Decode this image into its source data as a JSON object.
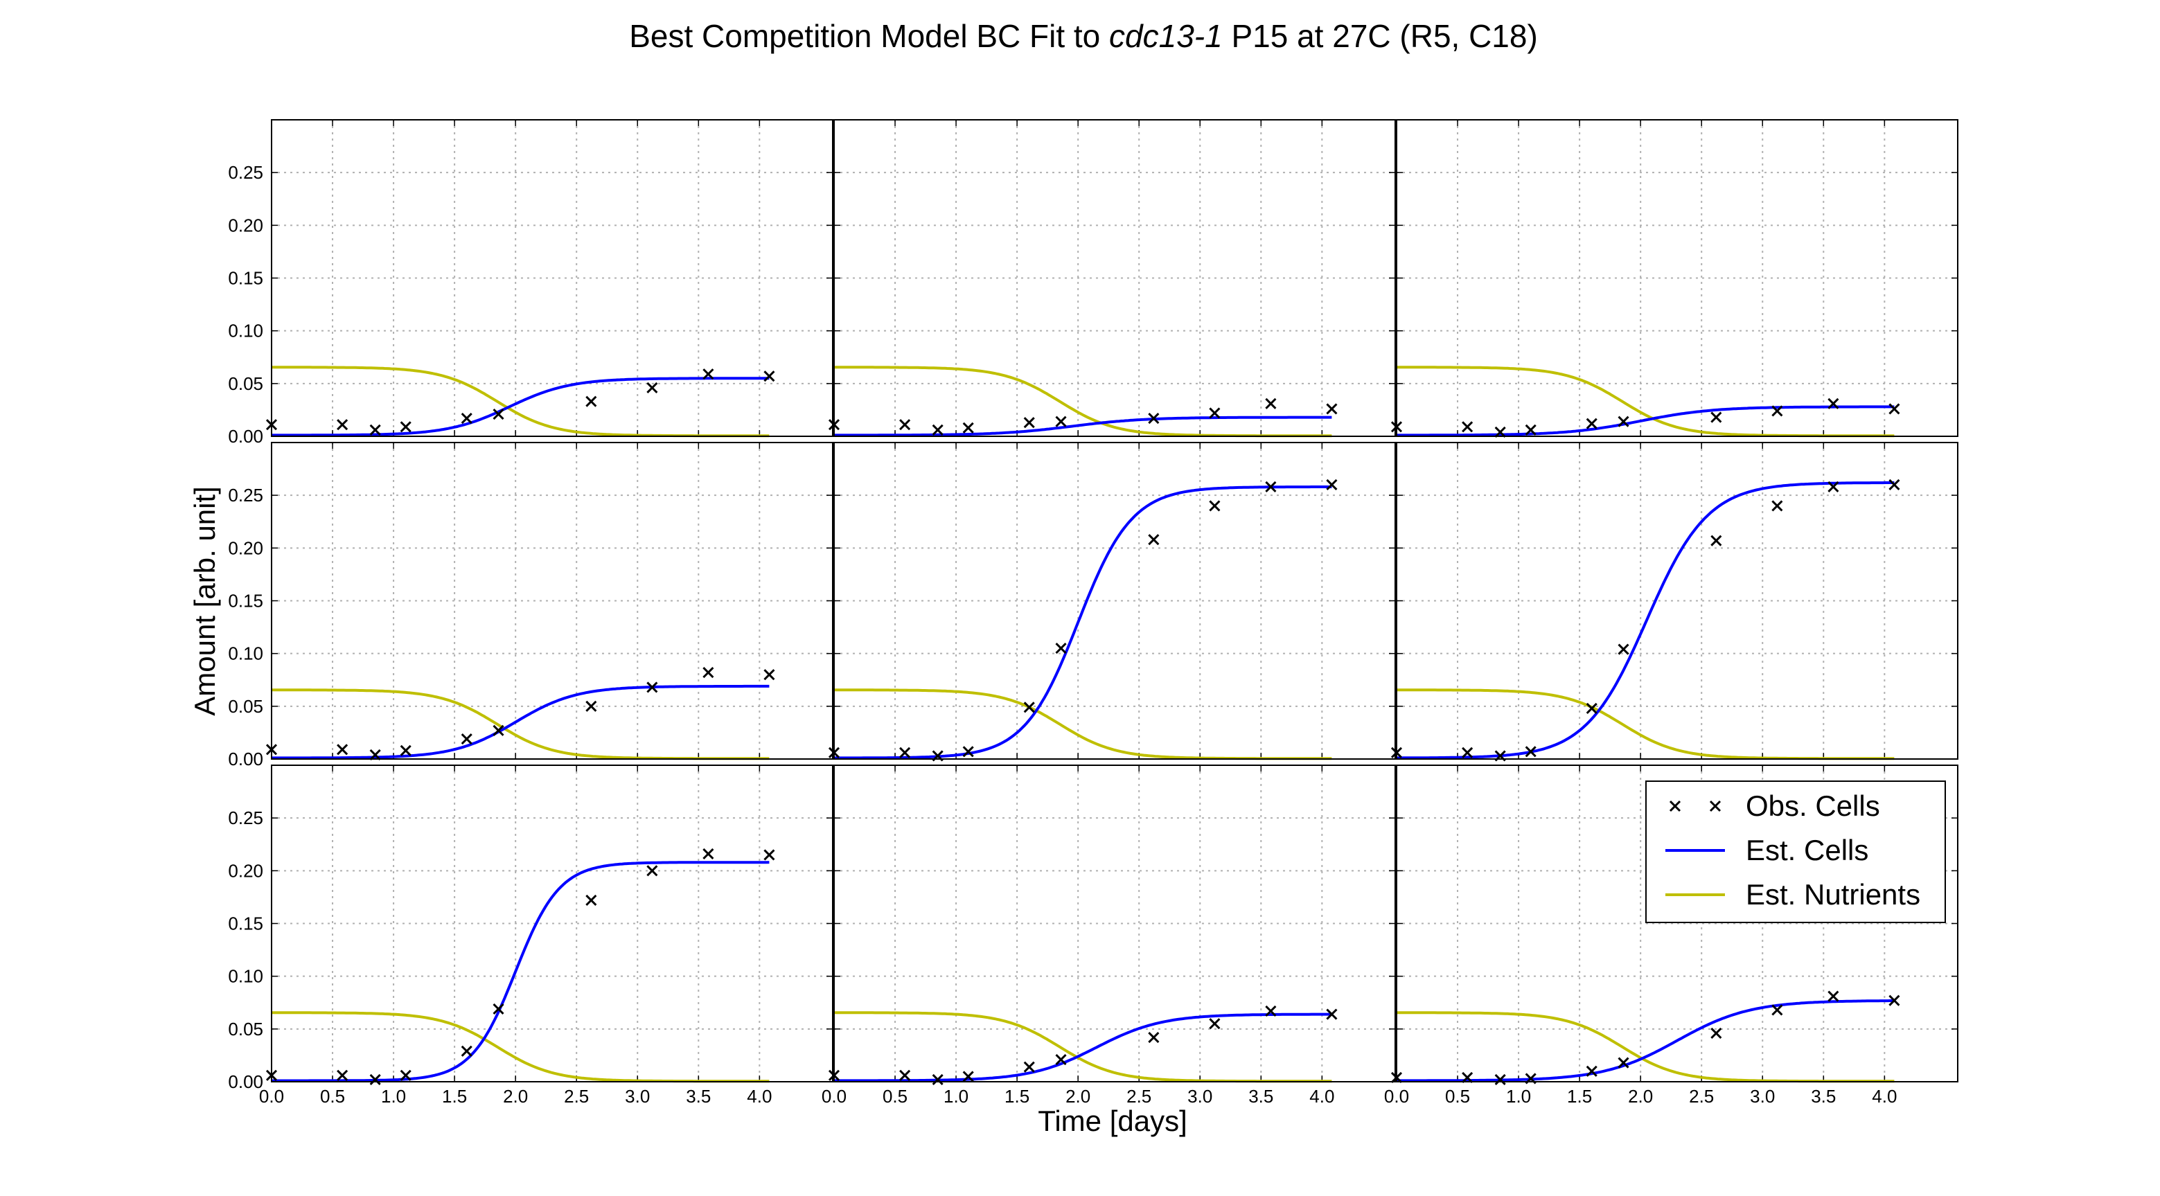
{
  "figure": {
    "title_prefix": "Best Competition Model BC Fit to ",
    "title_italic": "cdc13-1",
    "title_suffix": " P15 at 27C (R5, C18)",
    "xlabel": "Time [days]",
    "ylabel": "Amount [arb. unit]"
  },
  "legend": {
    "items": [
      {
        "label": "Obs. Cells",
        "kind": "marker",
        "color": "#000000"
      },
      {
        "label": "Est. Cells",
        "kind": "line",
        "color": "#0000ff"
      },
      {
        "label": "Est. Nutrients",
        "kind": "line",
        "color": "#bfbf00"
      }
    ]
  },
  "colors": {
    "cells": "#0000ff",
    "nutrients": "#bfbf00",
    "observed": "#000000",
    "grid": "#b0b0b0"
  },
  "chart_data": {
    "type": "line",
    "grid": true,
    "layout": "3x3 small multiples, shared axes",
    "legend_placement": "bottom-right panel, upper right",
    "xlim": [
      0,
      4.6
    ],
    "ylim": [
      0,
      0.3
    ],
    "x_ticks": [
      "0.0",
      "0.5",
      "1.0",
      "1.5",
      "2.0",
      "2.5",
      "3.0",
      "3.5",
      "4.0"
    ],
    "y_ticks": [
      "0.00",
      "0.05",
      "0.10",
      "0.15",
      "0.20",
      "0.25"
    ],
    "obs_x": [
      0.0,
      0.58,
      0.85,
      1.1,
      1.6,
      1.86,
      2.62,
      3.12,
      3.58,
      4.08
    ],
    "nutrients": {
      "initial": 0.065,
      "midpoint_days": 1.85,
      "width_days": 0.23
    },
    "panels": [
      {
        "obs_cells": [
          0.011,
          0.011,
          0.006,
          0.009,
          0.017,
          0.021,
          0.033,
          0.046,
          0.059,
          0.057
        ],
        "est_cells": {
          "initial": 0.001,
          "final": 0.055,
          "midpoint_days": 1.95,
          "width_days": 0.25
        }
      },
      {
        "obs_cells": [
          0.011,
          0.011,
          0.006,
          0.008,
          0.013,
          0.014,
          0.017,
          0.022,
          0.031,
          0.026
        ],
        "est_cells": {
          "initial": 0.001,
          "final": 0.018,
          "midpoint_days": 1.95,
          "width_days": 0.3
        }
      },
      {
        "obs_cells": [
          0.009,
          0.009,
          0.004,
          0.006,
          0.012,
          0.014,
          0.018,
          0.024,
          0.031,
          0.026
        ],
        "est_cells": {
          "initial": 0.001,
          "final": 0.028,
          "midpoint_days": 2.0,
          "width_days": 0.3
        }
      },
      {
        "obs_cells": [
          0.009,
          0.009,
          0.004,
          0.008,
          0.019,
          0.027,
          0.05,
          0.068,
          0.082,
          0.08
        ],
        "est_cells": {
          "initial": 0.001,
          "final": 0.069,
          "midpoint_days": 2.0,
          "width_days": 0.25
        }
      },
      {
        "obs_cells": [
          0.006,
          0.006,
          0.003,
          0.007,
          0.049,
          0.105,
          0.208,
          0.24,
          0.258,
          0.26
        ],
        "est_cells": {
          "initial": 0.001,
          "final": 0.258,
          "midpoint_days": 2.0,
          "width_days": 0.22
        }
      },
      {
        "obs_cells": [
          0.006,
          0.006,
          0.003,
          0.007,
          0.048,
          0.104,
          0.207,
          0.24,
          0.258,
          0.26
        ],
        "est_cells": {
          "initial": 0.001,
          "final": 0.262,
          "midpoint_days": 2.05,
          "width_days": 0.25
        }
      },
      {
        "obs_cells": [
          0.006,
          0.006,
          0.002,
          0.006,
          0.029,
          0.069,
          0.172,
          0.2,
          0.216,
          0.215
        ],
        "est_cells": {
          "initial": 0.001,
          "final": 0.208,
          "midpoint_days": 2.0,
          "width_days": 0.18
        }
      },
      {
        "obs_cells": [
          0.006,
          0.006,
          0.002,
          0.005,
          0.014,
          0.021,
          0.042,
          0.055,
          0.067,
          0.064
        ],
        "est_cells": {
          "initial": 0.001,
          "final": 0.064,
          "midpoint_days": 2.15,
          "width_days": 0.27
        }
      },
      {
        "obs_cells": [
          0.004,
          0.004,
          0.002,
          0.003,
          0.01,
          0.018,
          0.046,
          0.068,
          0.081,
          0.077
        ],
        "est_cells": {
          "initial": 0.001,
          "final": 0.077,
          "midpoint_days": 2.3,
          "width_days": 0.3
        }
      }
    ]
  }
}
